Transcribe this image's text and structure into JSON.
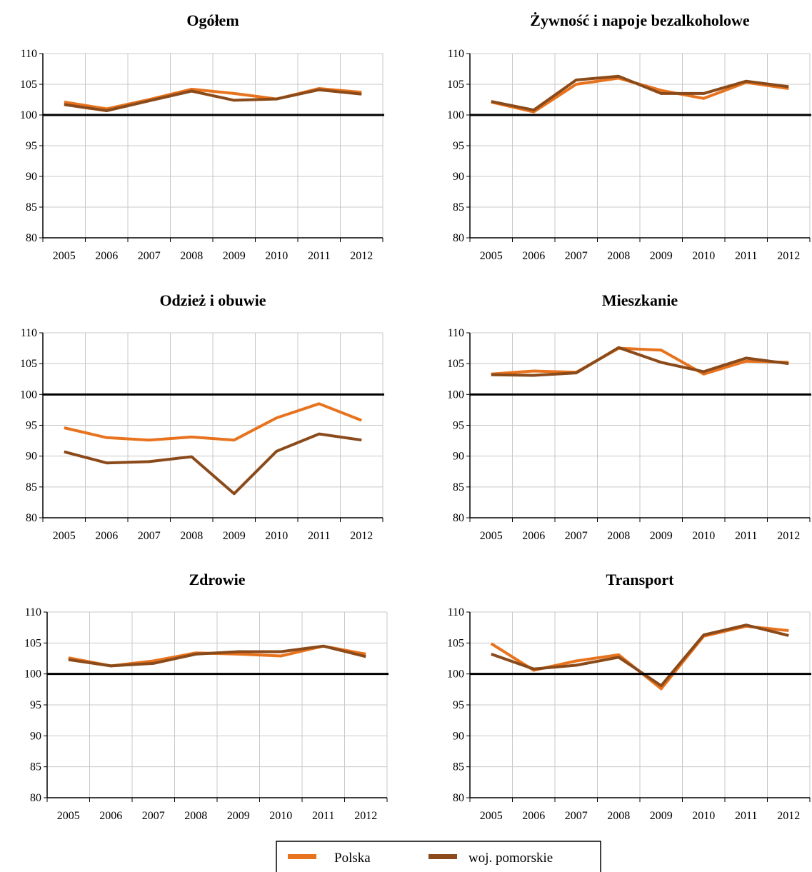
{
  "chart_data": [
    {
      "type": "line",
      "title": "Ogółem",
      "x": [
        "2005",
        "2006",
        "2007",
        "2008",
        "2009",
        "2010",
        "2011",
        "2012"
      ],
      "ylim": [
        80,
        110
      ],
      "yticks": [
        80,
        85,
        90,
        95,
        100,
        105,
        110
      ],
      "reference_line": 100,
      "grid": true,
      "series": [
        {
          "name": "Polska",
          "color": "#E8731E",
          "values": [
            102.1,
            101.0,
            102.5,
            104.2,
            103.5,
            102.6,
            104.3,
            103.7
          ]
        },
        {
          "name": "woj. pomorskie",
          "color": "#8B4A1A",
          "values": [
            101.7,
            100.7,
            102.3,
            103.9,
            102.4,
            102.6,
            104.1,
            103.4
          ]
        }
      ]
    },
    {
      "type": "line",
      "title": "Żywność i napoje bezalkoholowe",
      "x": [
        "2005",
        "2006",
        "2007",
        "2008",
        "2009",
        "2010",
        "2011",
        "2012"
      ],
      "ylim": [
        80,
        110
      ],
      "yticks": [
        80,
        85,
        90,
        95,
        100,
        105,
        110
      ],
      "reference_line": 100,
      "grid": true,
      "series": [
        {
          "name": "Polska",
          "color": "#E8731E",
          "values": [
            102.1,
            100.5,
            105.0,
            106.0,
            104.0,
            102.7,
            105.3,
            104.3
          ]
        },
        {
          "name": "woj. pomorskie",
          "color": "#8B4A1A",
          "values": [
            102.2,
            100.8,
            105.7,
            106.3,
            103.5,
            103.5,
            105.5,
            104.6
          ]
        }
      ]
    },
    {
      "type": "line",
      "title": "Odzież i obuwie",
      "x": [
        "2005",
        "2006",
        "2007",
        "2008",
        "2009",
        "2010",
        "2011",
        "2012"
      ],
      "ylim": [
        80,
        110
      ],
      "yticks": [
        80,
        85,
        90,
        95,
        100,
        105,
        110
      ],
      "reference_line": 100,
      "grid": true,
      "series": [
        {
          "name": "Polska",
          "color": "#E8731E",
          "values": [
            94.6,
            93.0,
            92.6,
            93.1,
            92.6,
            96.2,
            98.5,
            95.8
          ]
        },
        {
          "name": "woj. pomorskie",
          "color": "#8B4A1A",
          "values": [
            90.7,
            88.9,
            89.1,
            89.9,
            83.9,
            90.8,
            93.6,
            92.6
          ]
        }
      ]
    },
    {
      "type": "line",
      "title": "Mieszkanie",
      "x": [
        "2005",
        "2006",
        "2007",
        "2008",
        "2009",
        "2010",
        "2011",
        "2012"
      ],
      "ylim": [
        80,
        110
      ],
      "yticks": [
        80,
        85,
        90,
        95,
        100,
        105,
        110
      ],
      "reference_line": 100,
      "grid": true,
      "series": [
        {
          "name": "Polska",
          "color": "#E8731E",
          "values": [
            103.3,
            103.8,
            103.6,
            107.5,
            107.2,
            103.3,
            105.4,
            105.2
          ]
        },
        {
          "name": "woj. pomorskie",
          "color": "#8B4A1A",
          "values": [
            103.2,
            103.1,
            103.5,
            107.6,
            105.2,
            103.7,
            105.9,
            105.0
          ]
        }
      ]
    },
    {
      "type": "line",
      "title": "Zdrowie",
      "x": [
        "2005",
        "2006",
        "2007",
        "2008",
        "2009",
        "2010",
        "2011",
        "2012"
      ],
      "ylim": [
        80,
        110
      ],
      "yticks": [
        80,
        85,
        90,
        95,
        100,
        105,
        110
      ],
      "reference_line": 100,
      "grid": true,
      "series": [
        {
          "name": "Polska",
          "color": "#E8731E",
          "values": [
            102.6,
            101.3,
            102.1,
            103.4,
            103.2,
            102.9,
            104.5,
            103.2
          ]
        },
        {
          "name": "woj. pomorskie",
          "color": "#8B4A1A",
          "values": [
            102.3,
            101.3,
            101.7,
            103.2,
            103.6,
            103.6,
            104.5,
            102.8
          ]
        }
      ]
    },
    {
      "type": "line",
      "title": "Transport",
      "x": [
        "2005",
        "2006",
        "2007",
        "2008",
        "2009",
        "2010",
        "2011",
        "2012"
      ],
      "ylim": [
        80,
        110
      ],
      "yticks": [
        80,
        85,
        90,
        95,
        100,
        105,
        110
      ],
      "reference_line": 100,
      "grid": true,
      "series": [
        {
          "name": "Polska",
          "color": "#E8731E",
          "values": [
            104.9,
            100.6,
            102.1,
            103.1,
            97.6,
            106.1,
            107.7,
            107.0
          ]
        },
        {
          "name": "woj. pomorskie",
          "color": "#8B4A1A",
          "values": [
            103.2,
            100.8,
            101.4,
            102.7,
            98.1,
            106.3,
            107.9,
            106.2
          ]
        }
      ]
    }
  ],
  "legend": {
    "placement": "bottom-center",
    "items": [
      {
        "label": "Polska",
        "color": "#E8731E"
      },
      {
        "label": "woj. pomorskie",
        "color": "#8B4A1A"
      }
    ]
  }
}
